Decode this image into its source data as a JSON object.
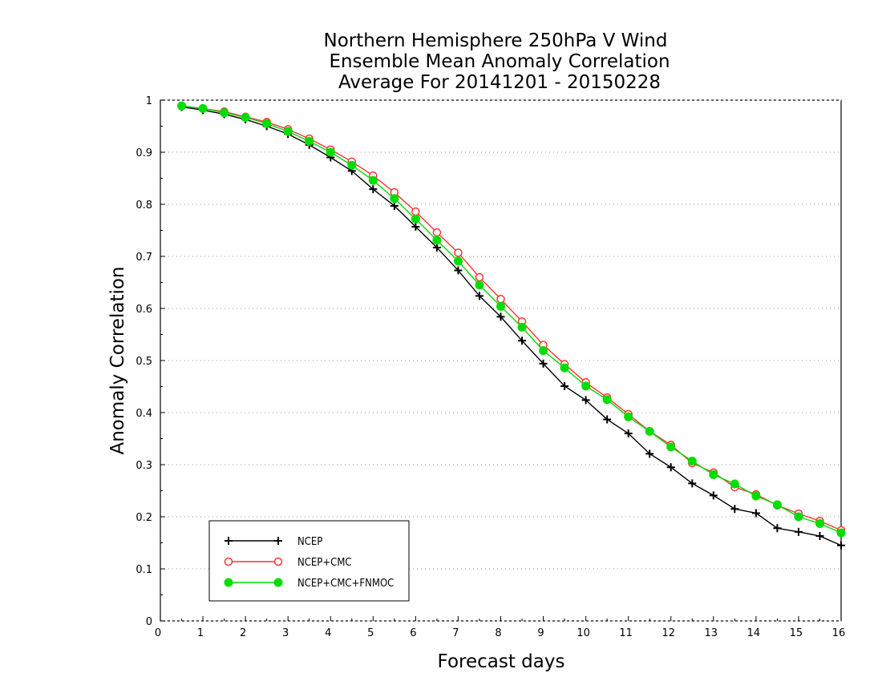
{
  "chart_data": {
    "type": "line",
    "title": [
      "Northern Hemisphere 250hPa V Wind",
      "Ensemble Mean Anomaly Correlation",
      "Average For 20141201 - 20150228"
    ],
    "xlabel": "Forecast days",
    "ylabel": "Anomaly Correlation",
    "xlim": [
      0,
      16
    ],
    "ylim": [
      0,
      1
    ],
    "xticks": [
      0,
      1,
      2,
      3,
      4,
      5,
      6,
      7,
      8,
      9,
      10,
      11,
      12,
      13,
      14,
      15,
      16
    ],
    "yticks": [
      0,
      0.1,
      0.2,
      0.3,
      0.4,
      0.5,
      0.6,
      0.7,
      0.8,
      0.9,
      1
    ],
    "ytick_labels": [
      "0",
      "0.1",
      "0.2",
      "0.3",
      "0.4",
      "0.5",
      "0.6",
      "0.7",
      "0.8",
      "0.9",
      "1"
    ],
    "grid": true,
    "legend_position": "bottom-left",
    "x": [
      0.5,
      1,
      1.5,
      2,
      2.5,
      3,
      3.5,
      4,
      4.5,
      5,
      5.5,
      6,
      6.5,
      7,
      7.5,
      8,
      8.5,
      9,
      9.5,
      10,
      10.5,
      11,
      11.5,
      12,
      12.5,
      13,
      13.5,
      14,
      14.5,
      15,
      15.5,
      16
    ],
    "series": [
      {
        "name": "NCEP",
        "color": "#000000",
        "marker": "plus",
        "values": [
          0.987,
          0.981,
          0.973,
          0.963,
          0.95,
          0.935,
          0.914,
          0.89,
          0.864,
          0.829,
          0.797,
          0.757,
          0.717,
          0.673,
          0.624,
          0.584,
          0.538,
          0.494,
          0.451,
          0.424,
          0.387,
          0.36,
          0.321,
          0.295,
          0.264,
          0.241,
          0.215,
          0.207,
          0.178,
          0.171,
          0.163,
          0.145
        ]
      },
      {
        "name": "NCEP+CMC",
        "color": "#ff3333",
        "marker": "open-circle",
        "values": [
          0.989,
          0.984,
          0.978,
          0.968,
          0.958,
          0.944,
          0.926,
          0.905,
          0.882,
          0.855,
          0.823,
          0.786,
          0.746,
          0.707,
          0.66,
          0.618,
          0.575,
          0.53,
          0.493,
          0.458,
          0.429,
          0.397,
          0.364,
          0.338,
          0.303,
          0.285,
          0.257,
          0.243,
          0.222,
          0.206,
          0.192,
          0.174
        ]
      },
      {
        "name": "NCEP+CMC+FNMOC",
        "color": "#00dd00",
        "marker": "filled-circle",
        "values": [
          0.989,
          0.984,
          0.976,
          0.967,
          0.955,
          0.94,
          0.921,
          0.9,
          0.875,
          0.846,
          0.811,
          0.772,
          0.731,
          0.691,
          0.645,
          0.604,
          0.564,
          0.519,
          0.486,
          0.451,
          0.425,
          0.392,
          0.364,
          0.334,
          0.307,
          0.281,
          0.263,
          0.24,
          0.223,
          0.2,
          0.187,
          0.169
        ]
      }
    ]
  }
}
